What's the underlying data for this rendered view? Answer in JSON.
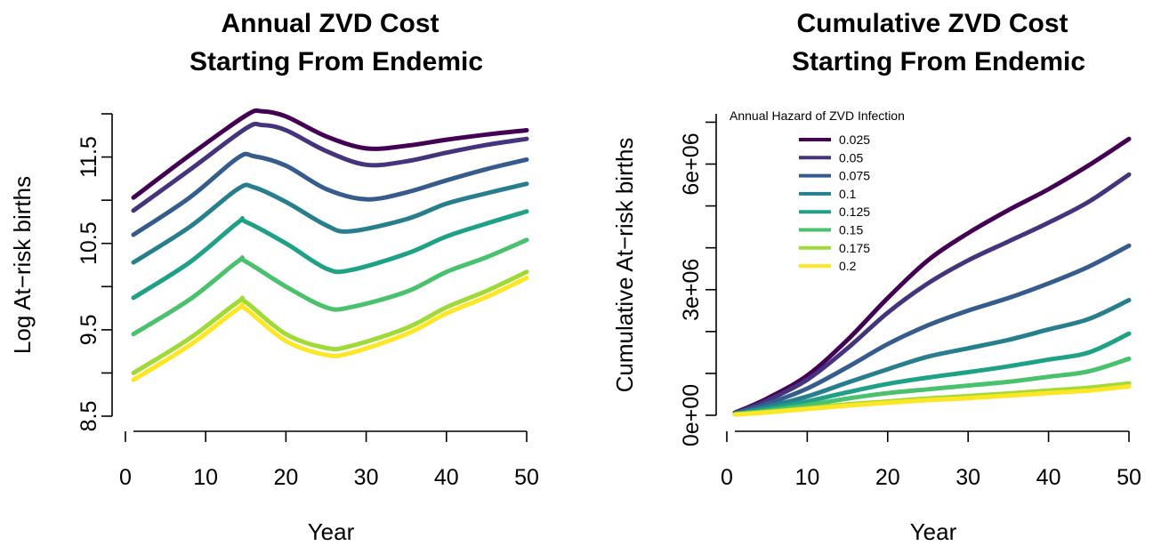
{
  "chart_data": [
    {
      "type": "line",
      "title": [
        "Annual ZVD Cost",
        "Starting From Endemic"
      ],
      "xlabel": "Year",
      "ylabel": "Log At−risk births",
      "xlim": [
        1,
        50
      ],
      "ylim": [
        8.5,
        12.0
      ],
      "xticks": [
        0,
        10,
        20,
        30,
        40,
        50
      ],
      "xtick_labels": [
        "0",
        "10",
        "20",
        "30",
        "40",
        "50"
      ],
      "yticks": [
        8.5,
        9.0,
        9.5,
        10.0,
        10.5,
        11.0,
        11.5,
        12.0
      ],
      "ytick_labels": [
        "8.5",
        "",
        "9.5",
        "",
        "10.5",
        "",
        "11.5",
        ""
      ],
      "grid": false,
      "series": [
        {
          "name": "0.025",
          "color": "#440154",
          "x": [
            1,
            8,
            15,
            17,
            20,
            25,
            30,
            35,
            40,
            45,
            50
          ],
          "y": [
            11.03,
            11.52,
            11.98,
            12.03,
            11.97,
            11.74,
            11.6,
            11.63,
            11.7,
            11.76,
            11.81
          ]
        },
        {
          "name": "0.05",
          "color": "#46337e",
          "x": [
            1,
            8,
            15,
            17,
            20,
            25,
            30,
            35,
            40,
            45,
            50
          ],
          "y": [
            10.88,
            11.35,
            11.83,
            11.87,
            11.81,
            11.57,
            11.41,
            11.45,
            11.55,
            11.64,
            11.71
          ]
        },
        {
          "name": "0.075",
          "color": "#365c8d",
          "x": [
            1,
            8,
            14,
            16,
            20,
            25,
            30,
            35,
            40,
            45,
            50
          ],
          "y": [
            10.6,
            11.03,
            11.49,
            11.51,
            11.4,
            11.13,
            11.01,
            11.09,
            11.23,
            11.36,
            11.47
          ]
        },
        {
          "name": "0.1",
          "color": "#277f8e",
          "x": [
            1,
            8,
            14,
            16,
            20,
            25,
            28,
            35,
            40,
            45,
            50
          ],
          "y": [
            10.28,
            10.69,
            11.13,
            11.15,
            10.98,
            10.71,
            10.64,
            10.78,
            10.96,
            11.08,
            11.19
          ]
        },
        {
          "name": "0.125",
          "color": "#1fa187",
          "x": [
            1,
            8,
            14,
            15,
            20,
            25,
            28,
            35,
            40,
            45,
            50
          ],
          "y": [
            9.87,
            10.28,
            10.74,
            10.75,
            10.5,
            10.21,
            10.19,
            10.38,
            10.58,
            10.73,
            10.87
          ]
        },
        {
          "name": "0.15",
          "color": "#4ac16d",
          "x": [
            1,
            8,
            14,
            15,
            20,
            25,
            28,
            35,
            40,
            45,
            50
          ],
          "y": [
            9.45,
            9.85,
            10.29,
            10.29,
            10.0,
            9.76,
            9.76,
            9.94,
            10.17,
            10.34,
            10.54
          ]
        },
        {
          "name": "0.175",
          "color": "#a0da39",
          "x": [
            1,
            8,
            14,
            15,
            20,
            25,
            28,
            35,
            40,
            45,
            50
          ],
          "y": [
            9.0,
            9.4,
            9.82,
            9.82,
            9.45,
            9.29,
            9.31,
            9.52,
            9.76,
            9.95,
            10.17
          ]
        },
        {
          "name": "0.2",
          "color": "#fde725",
          "x": [
            1,
            8,
            14,
            15,
            20,
            25,
            28,
            35,
            40,
            45,
            50
          ],
          "y": [
            8.92,
            9.32,
            9.74,
            9.74,
            9.37,
            9.21,
            9.23,
            9.45,
            9.69,
            9.88,
            10.1
          ]
        }
      ]
    },
    {
      "type": "line",
      "title": [
        "Cumulative ZVD Cost",
        "Starting From Endemic"
      ],
      "xlabel": "Year",
      "ylabel": "Cumulative At−risk births",
      "xlim": [
        1,
        50
      ],
      "ylim": [
        0,
        7200000
      ],
      "xticks": [
        0,
        10,
        20,
        30,
        40,
        50
      ],
      "xtick_labels": [
        "0",
        "10",
        "20",
        "30",
        "40",
        "50"
      ],
      "yticks": [
        0,
        1000000,
        2000000,
        3000000,
        4000000,
        5000000,
        6000000,
        7000000
      ],
      "ytick_labels": [
        "0e+00",
        "",
        "",
        "3e+06",
        "",
        "",
        "6e+06",
        ""
      ],
      "grid": false,
      "legend": {
        "title": "Annual Hazard of ZVD Infection",
        "placement": "top-left",
        "entries": [
          "0.025",
          "0.05",
          "0.075",
          "0.1",
          "0.125",
          "0.15",
          "0.175",
          "0.2"
        ]
      },
      "series": [
        {
          "name": "0.025",
          "color": "#440154",
          "x": [
            1,
            5,
            10,
            15,
            20,
            25,
            30,
            35,
            40,
            45,
            50
          ],
          "y": [
            60000,
            400000,
            950000,
            1800000,
            2800000,
            3700000,
            4350000,
            4900000,
            5400000,
            5970000,
            6600000
          ]
        },
        {
          "name": "0.05",
          "color": "#46337e",
          "x": [
            1,
            5,
            10,
            15,
            20,
            25,
            30,
            35,
            40,
            45,
            50
          ],
          "y": [
            50000,
            350000,
            850000,
            1600000,
            2450000,
            3150000,
            3700000,
            4150000,
            4600000,
            5100000,
            5750000
          ]
        },
        {
          "name": "0.075",
          "color": "#365c8d",
          "x": [
            1,
            5,
            10,
            15,
            20,
            25,
            30,
            35,
            40,
            45,
            50
          ],
          "y": [
            40000,
            270000,
            640000,
            1150000,
            1700000,
            2150000,
            2500000,
            2800000,
            3150000,
            3550000,
            4050000
          ]
        },
        {
          "name": "0.1",
          "color": "#277f8e",
          "x": [
            1,
            5,
            10,
            15,
            20,
            25,
            30,
            35,
            40,
            45,
            50
          ],
          "y": [
            35000,
            200000,
            450000,
            780000,
            1100000,
            1400000,
            1600000,
            1800000,
            2050000,
            2300000,
            2750000
          ]
        },
        {
          "name": "0.125",
          "color": "#1fa187",
          "x": [
            1,
            5,
            10,
            15,
            20,
            25,
            30,
            35,
            40,
            45,
            50
          ],
          "y": [
            30000,
            150000,
            330000,
            550000,
            750000,
            900000,
            1030000,
            1170000,
            1330000,
            1500000,
            1950000
          ]
        },
        {
          "name": "0.15",
          "color": "#4ac16d",
          "x": [
            1,
            5,
            10,
            15,
            20,
            25,
            30,
            35,
            40,
            45,
            50
          ],
          "y": [
            25000,
            110000,
            240000,
            400000,
            530000,
            620000,
            710000,
            800000,
            920000,
            1050000,
            1350000
          ]
        },
        {
          "name": "0.175",
          "color": "#a0da39",
          "x": [
            1,
            5,
            10,
            15,
            20,
            25,
            30,
            35,
            40,
            45,
            50
          ],
          "y": [
            20000,
            80000,
            170000,
            260000,
            330000,
            400000,
            460000,
            520000,
            590000,
            660000,
            760000
          ]
        },
        {
          "name": "0.2",
          "color": "#fde725",
          "x": [
            1,
            5,
            10,
            15,
            20,
            25,
            30,
            35,
            40,
            45,
            50
          ],
          "y": [
            18000,
            70000,
            150000,
            230000,
            300000,
            360000,
            410000,
            470000,
            530000,
            590000,
            690000
          ]
        }
      ]
    }
  ]
}
